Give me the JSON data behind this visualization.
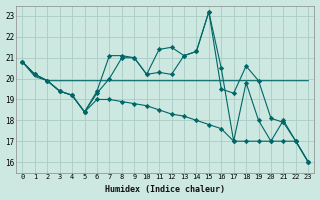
{
  "xlabel": "Humidex (Indice chaleur)",
  "bg_color": "#cce8e0",
  "line_color": "#006666",
  "grid_color": "#aaccc4",
  "xlim": [
    -0.5,
    23.5
  ],
  "ylim": [
    15.5,
    23.5
  ],
  "yticks": [
    16,
    17,
    18,
    19,
    20,
    21,
    22,
    23
  ],
  "xticks": [
    0,
    1,
    2,
    3,
    4,
    5,
    6,
    7,
    8,
    9,
    10,
    11,
    12,
    13,
    14,
    15,
    16,
    17,
    18,
    19,
    20,
    21,
    22,
    23
  ],
  "series": [
    [
      20.8,
      20.2,
      19.9,
      19.4,
      19.2,
      18.4,
      19.4,
      21.1,
      21.1,
      21.0,
      20.2,
      21.4,
      21.5,
      21.1,
      21.3,
      23.2,
      19.5,
      19.3,
      20.6,
      19.9,
      18.1,
      17.9,
      17.0,
      16.0
    ],
    [
      20.8,
      20.1,
      19.9,
      19.9,
      19.9,
      19.9,
      19.9,
      19.9,
      19.9,
      19.9,
      19.9,
      19.9,
      19.9,
      19.9,
      19.9,
      19.9,
      19.9,
      19.9,
      19.9,
      19.9,
      19.9,
      19.9,
      19.9,
      19.9
    ],
    [
      20.8,
      20.2,
      19.9,
      19.4,
      19.2,
      18.4,
      19.3,
      20.0,
      21.0,
      21.0,
      20.2,
      20.3,
      20.2,
      21.1,
      21.3,
      23.2,
      20.5,
      17.0,
      19.8,
      18.0,
      17.0,
      18.0,
      17.0,
      16.0
    ],
    [
      20.8,
      20.2,
      19.9,
      19.4,
      19.2,
      18.4,
      19.0,
      19.0,
      18.9,
      18.8,
      18.7,
      18.5,
      18.3,
      18.2,
      18.0,
      17.8,
      17.6,
      17.0,
      17.0,
      17.0,
      17.0,
      17.0,
      17.0,
      16.0
    ]
  ],
  "markers": [
    true,
    false,
    true,
    true
  ]
}
